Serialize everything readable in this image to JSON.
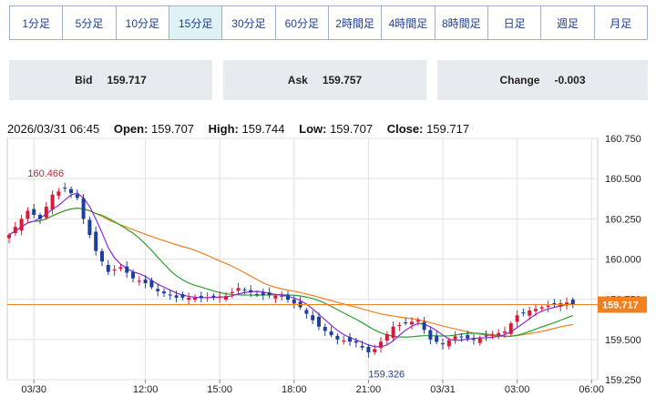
{
  "tabs": [
    {
      "label": "1分足",
      "active": false
    },
    {
      "label": "5分足",
      "active": false
    },
    {
      "label": "10分足",
      "active": false
    },
    {
      "label": "15分足",
      "active": true
    },
    {
      "label": "30分足",
      "active": false
    },
    {
      "label": "60分足",
      "active": false
    },
    {
      "label": "2時間足",
      "active": false
    },
    {
      "label": "4時間足",
      "active": false
    },
    {
      "label": "8時間足",
      "active": false
    },
    {
      "label": "日足",
      "active": false
    },
    {
      "label": "週足",
      "active": false
    },
    {
      "label": "月足",
      "active": false
    }
  ],
  "quotes": {
    "bid_label": "Bid",
    "bid_value": "159.717",
    "ask_label": "Ask",
    "ask_value": "159.757",
    "change_label": "Change",
    "change_value": "-0.003"
  },
  "ohlc": {
    "datetime": "2026/03/31 06:45",
    "open_label": "Open:",
    "open": "159.707",
    "high_label": "High:",
    "high": "159.744",
    "low_label": "Low:",
    "low": "159.707",
    "close_label": "Close:",
    "close": "159.717"
  },
  "colors": {
    "up": "#d9183b",
    "down": "#1e3f9c",
    "ma_short": "#8a2be2",
    "ma_mid": "#2aa02a",
    "ma_long": "#f08020",
    "price_line": "#f08020",
    "grid": "#e2e2e2"
  },
  "chart_data": {
    "type": "candlestick",
    "ylim": [
      159.25,
      160.75
    ],
    "y_ticks": [
      159.25,
      159.5,
      159.75,
      160.0,
      160.25,
      160.5,
      160.75
    ],
    "y_tick_labels": [
      "159.250",
      "159.500",
      "159.750",
      "160.000",
      "160.250",
      "160.500",
      "160.750"
    ],
    "x_tick_labels": [
      "03/30",
      "12:00",
      "15:00",
      "18:00",
      "21:00",
      "03/31",
      "03:00",
      "06:00"
    ],
    "current_price": 159.717,
    "current_price_label": "159.717",
    "annotations": [
      {
        "text": "160.466",
        "value": 160.466,
        "kind": "high"
      },
      {
        "text": "159.326",
        "value": 159.326,
        "kind": "low"
      }
    ],
    "bar_count": 92,
    "x_tick_bar_index": [
      4,
      22,
      34,
      46,
      58,
      70,
      82,
      94
    ],
    "anchors": [
      [
        0,
        160.15
      ],
      [
        3,
        160.3
      ],
      [
        5,
        160.25
      ],
      [
        7,
        160.4
      ],
      [
        9,
        160.44
      ],
      [
        11,
        160.38
      ],
      [
        12,
        160.25
      ],
      [
        14,
        160.05
      ],
      [
        16,
        159.92
      ],
      [
        18,
        159.95
      ],
      [
        20,
        159.88
      ],
      [
        22,
        159.85
      ],
      [
        24,
        159.8
      ],
      [
        27,
        159.76
      ],
      [
        31,
        159.76
      ],
      [
        35,
        159.77
      ],
      [
        37,
        159.82
      ],
      [
        40,
        159.78
      ],
      [
        44,
        159.77
      ],
      [
        47,
        159.7
      ],
      [
        50,
        159.58
      ],
      [
        53,
        159.5
      ],
      [
        56,
        159.48
      ],
      [
        58,
        159.42
      ],
      [
        59,
        159.44
      ],
      [
        62,
        159.58
      ],
      [
        64,
        159.6
      ],
      [
        66,
        159.62
      ],
      [
        68,
        159.5
      ],
      [
        70,
        159.47
      ],
      [
        72,
        159.52
      ],
      [
        75,
        159.5
      ],
      [
        78,
        159.53
      ],
      [
        80,
        159.55
      ],
      [
        82,
        159.65
      ],
      [
        84,
        159.68
      ],
      [
        86,
        159.7
      ],
      [
        88,
        159.72
      ],
      [
        90,
        159.73
      ],
      [
        91,
        159.717
      ]
    ],
    "ma_short_period": 5,
    "ma_mid_period": 15,
    "ma_long_period": 30,
    "series": [
      {
        "name": "MA short",
        "role": "ma_short"
      },
      {
        "name": "MA mid",
        "role": "ma_mid"
      },
      {
        "name": "MA long",
        "role": "ma_long"
      }
    ]
  }
}
